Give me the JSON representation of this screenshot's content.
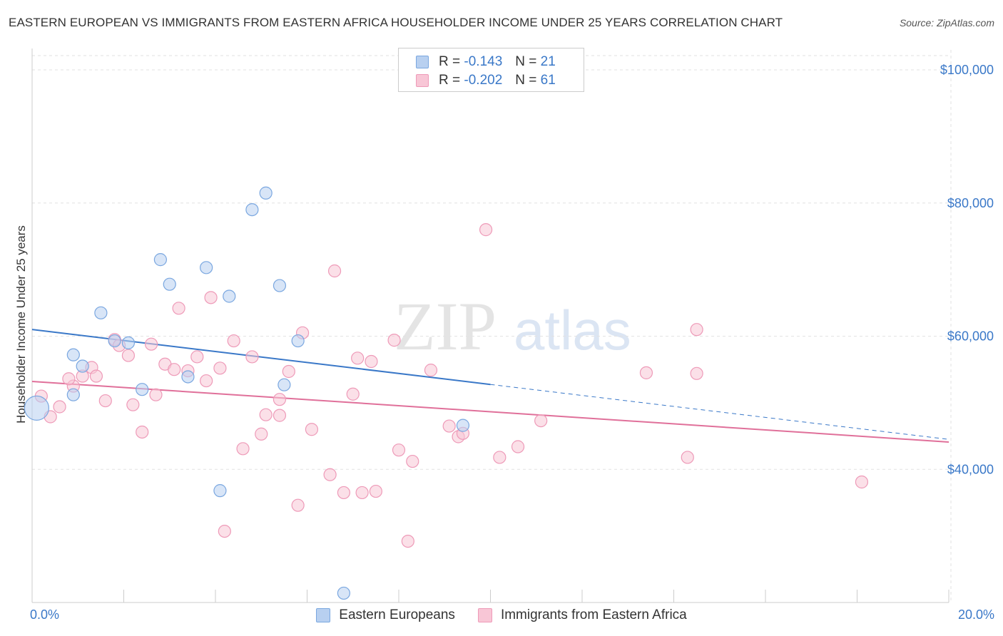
{
  "chart_data": {
    "type": "scatter",
    "title": "EASTERN EUROPEAN VS IMMIGRANTS FROM EASTERN AFRICA HOUSEHOLDER INCOME UNDER 25 YEARS CORRELATION CHART",
    "source": "Source: ZipAtlas.com",
    "ylabel": "Householder Income Under 25 years",
    "xlim": [
      0,
      20
    ],
    "ylim": [
      20000,
      103000
    ],
    "yticks": [
      {
        "value": 40000,
        "label": "$40,000"
      },
      {
        "value": 60000,
        "label": "$60,000"
      },
      {
        "value": 80000,
        "label": "$80,000"
      },
      {
        "value": 100000,
        "label": "$100,000"
      }
    ],
    "xtick_labels": {
      "min": "0.0%",
      "max": "20.0%"
    },
    "watermark": "ZIPatlas",
    "legend": [
      {
        "r_label": "R = ",
        "r_value": "-0.143",
        "n_label": "N = ",
        "n_value": "21"
      },
      {
        "r_label": "R = ",
        "r_value": "-0.202",
        "n_label": "N = ",
        "n_value": "61"
      }
    ],
    "series": [
      {
        "name": "Eastern Europeans",
        "color": "#7aa7e0",
        "fill": "#b8d0f0",
        "line_color": "#3a78c8",
        "trend": {
          "x0": 0,
          "y0": 61000,
          "x1": 20,
          "y1": 44500,
          "solid_until": 10
        },
        "points": [
          {
            "x": 0.1,
            "y": 49200,
            "big": true
          },
          {
            "x": 0.9,
            "y": 57200
          },
          {
            "x": 1.1,
            "y": 55500
          },
          {
            "x": 1.5,
            "y": 63500
          },
          {
            "x": 1.8,
            "y": 59300
          },
          {
            "x": 2.1,
            "y": 59000
          },
          {
            "x": 2.4,
            "y": 52000
          },
          {
            "x": 2.8,
            "y": 71500
          },
          {
            "x": 3.0,
            "y": 67800
          },
          {
            "x": 3.4,
            "y": 53900
          },
          {
            "x": 3.8,
            "y": 70300
          },
          {
            "x": 4.1,
            "y": 36800
          },
          {
            "x": 4.3,
            "y": 66000
          },
          {
            "x": 4.8,
            "y": 79000
          },
          {
            "x": 5.1,
            "y": 81500
          },
          {
            "x": 5.4,
            "y": 67600
          },
          {
            "x": 5.5,
            "y": 52700
          },
          {
            "x": 5.8,
            "y": 59300
          },
          {
            "x": 6.8,
            "y": 21400
          },
          {
            "x": 9.4,
            "y": 46600
          },
          {
            "x": 0.9,
            "y": 51200
          }
        ]
      },
      {
        "name": "Immigrants from Eastern Africa",
        "color": "#ee9ab8",
        "fill": "#f8c6d6",
        "line_color": "#e0709a",
        "trend": {
          "x0": 0,
          "y0": 53200,
          "x1": 20,
          "y1": 44100
        },
        "points": [
          {
            "x": 0.2,
            "y": 51000
          },
          {
            "x": 0.4,
            "y": 47900
          },
          {
            "x": 0.6,
            "y": 49400
          },
          {
            "x": 0.9,
            "y": 52500
          },
          {
            "x": 1.1,
            "y": 54000
          },
          {
            "x": 1.3,
            "y": 55300
          },
          {
            "x": 1.4,
            "y": 54000
          },
          {
            "x": 1.6,
            "y": 50300
          },
          {
            "x": 1.8,
            "y": 59500
          },
          {
            "x": 1.9,
            "y": 58600
          },
          {
            "x": 2.1,
            "y": 57100
          },
          {
            "x": 2.2,
            "y": 49700
          },
          {
            "x": 2.4,
            "y": 45600
          },
          {
            "x": 2.6,
            "y": 58800
          },
          {
            "x": 2.7,
            "y": 51200
          },
          {
            "x": 2.9,
            "y": 55800
          },
          {
            "x": 3.1,
            "y": 55000
          },
          {
            "x": 3.2,
            "y": 64200
          },
          {
            "x": 3.4,
            "y": 54800
          },
          {
            "x": 3.6,
            "y": 56900
          },
          {
            "x": 3.8,
            "y": 53300
          },
          {
            "x": 3.9,
            "y": 65800
          },
          {
            "x": 4.1,
            "y": 55200
          },
          {
            "x": 4.2,
            "y": 30700
          },
          {
            "x": 4.4,
            "y": 59300
          },
          {
            "x": 4.6,
            "y": 43100
          },
          {
            "x": 4.8,
            "y": 56900
          },
          {
            "x": 5.0,
            "y": 45300
          },
          {
            "x": 5.1,
            "y": 48200
          },
          {
            "x": 5.4,
            "y": 50500
          },
          {
            "x": 5.4,
            "y": 48100
          },
          {
            "x": 5.6,
            "y": 54700
          },
          {
            "x": 5.8,
            "y": 34600
          },
          {
            "x": 5.9,
            "y": 60500
          },
          {
            "x": 6.1,
            "y": 46000
          },
          {
            "x": 6.5,
            "y": 39200
          },
          {
            "x": 6.6,
            "y": 69800
          },
          {
            "x": 6.8,
            "y": 36500
          },
          {
            "x": 7.0,
            "y": 51300
          },
          {
            "x": 7.1,
            "y": 56700
          },
          {
            "x": 7.2,
            "y": 36500
          },
          {
            "x": 7.4,
            "y": 56200
          },
          {
            "x": 7.5,
            "y": 36700
          },
          {
            "x": 7.9,
            "y": 59400
          },
          {
            "x": 8.0,
            "y": 42900
          },
          {
            "x": 8.2,
            "y": 29200
          },
          {
            "x": 8.3,
            "y": 41200
          },
          {
            "x": 8.7,
            "y": 54900
          },
          {
            "x": 9.1,
            "y": 46500
          },
          {
            "x": 9.3,
            "y": 44900
          },
          {
            "x": 9.4,
            "y": 45400
          },
          {
            "x": 9.9,
            "y": 76000
          },
          {
            "x": 10.2,
            "y": 41800
          },
          {
            "x": 10.6,
            "y": 43400
          },
          {
            "x": 11.1,
            "y": 47300
          },
          {
            "x": 13.4,
            "y": 54500
          },
          {
            "x": 14.3,
            "y": 41800
          },
          {
            "x": 14.5,
            "y": 61000
          },
          {
            "x": 14.5,
            "y": 54400
          },
          {
            "x": 18.1,
            "y": 38100
          },
          {
            "x": 0.8,
            "y": 53600
          }
        ]
      }
    ]
  }
}
